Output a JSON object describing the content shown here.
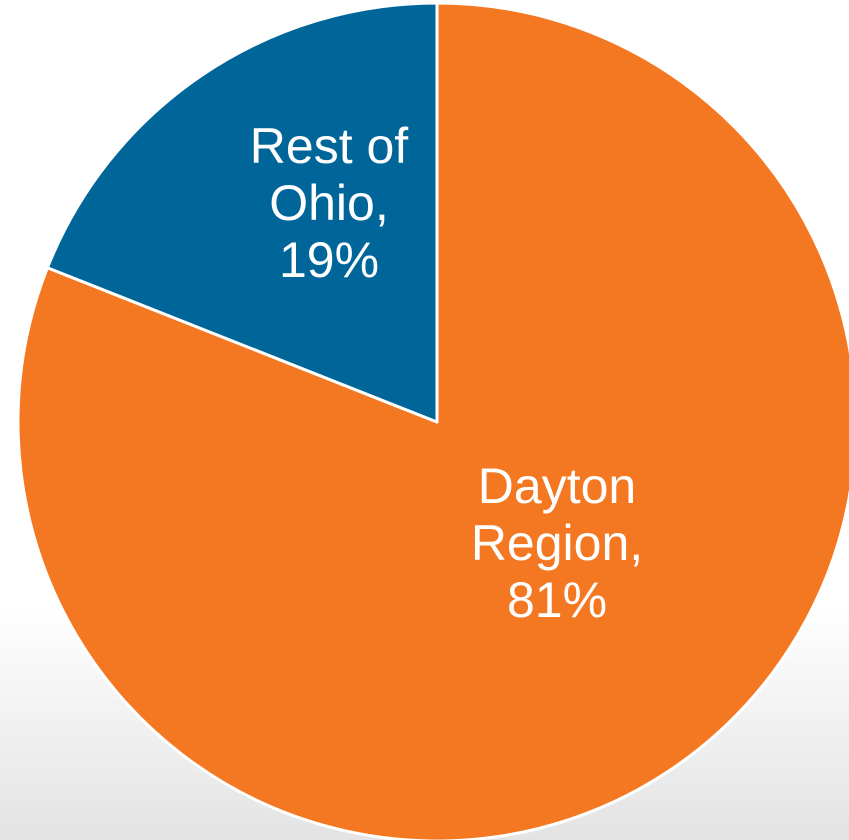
{
  "chart_data": {
    "type": "pie",
    "title": "",
    "start_angle_deg": 0,
    "direction": "clockwise",
    "slices": [
      {
        "name": "Dayton Region",
        "value": 81,
        "label_lines": [
          "Dayton",
          "Region,",
          "81%"
        ],
        "color": "#F47721"
      },
      {
        "name": "Rest of Ohio",
        "value": 19,
        "label_lines": [
          "Rest of",
          "Ohio,",
          "19%"
        ],
        "color": "#006699"
      }
    ],
    "legend": "none"
  }
}
